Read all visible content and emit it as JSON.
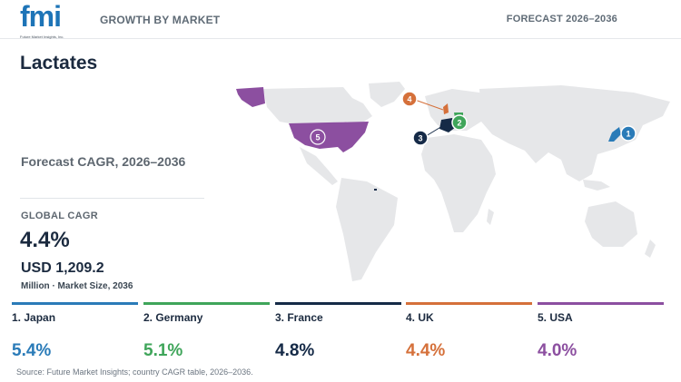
{
  "header": {
    "logo_text": "fmi",
    "logo_tagline": "Future Market Insights, Inc.",
    "section_label": "GROWTH BY MARKET",
    "forecast_label": "FORECAST 2026–2036"
  },
  "main": {
    "title": "Lactates",
    "forecast_cagr_label": "Forecast CAGR, 2026–2036",
    "global_cagr_label": "GLOBAL CAGR",
    "global_cagr_value": "4.4%",
    "market_size_value": "USD 1,209.2",
    "market_size_unit": "Million · Market Size, 2036"
  },
  "map": {
    "base_color": "#e6e7e9",
    "markers": [
      {
        "rank": "1",
        "country": "Japan",
        "color": "#2a7bb8"
      },
      {
        "rank": "2",
        "country": "Germany",
        "color": "#3fa55a"
      },
      {
        "rank": "3",
        "country": "France",
        "color": "#152a47"
      },
      {
        "rank": "4",
        "country": "UK",
        "color": "#d5703a"
      },
      {
        "rank": "5",
        "country": "USA",
        "color": "#8c4fa0"
      }
    ]
  },
  "countries": [
    {
      "label": "1. Japan",
      "value": "5.4%",
      "color": "#2a7bb8"
    },
    {
      "label": "2. Germany",
      "value": "5.1%",
      "color": "#3fa55a"
    },
    {
      "label": "3. France",
      "value": "4.8%",
      "color": "#152a47"
    },
    {
      "label": "4. UK",
      "value": "4.4%",
      "color": "#d5703a"
    },
    {
      "label": "5. USA",
      "value": "4.0%",
      "color": "#8c4fa0"
    }
  ],
  "footer": {
    "source": "Source: Future Market Insights; country CAGR table, 2026–2036."
  }
}
